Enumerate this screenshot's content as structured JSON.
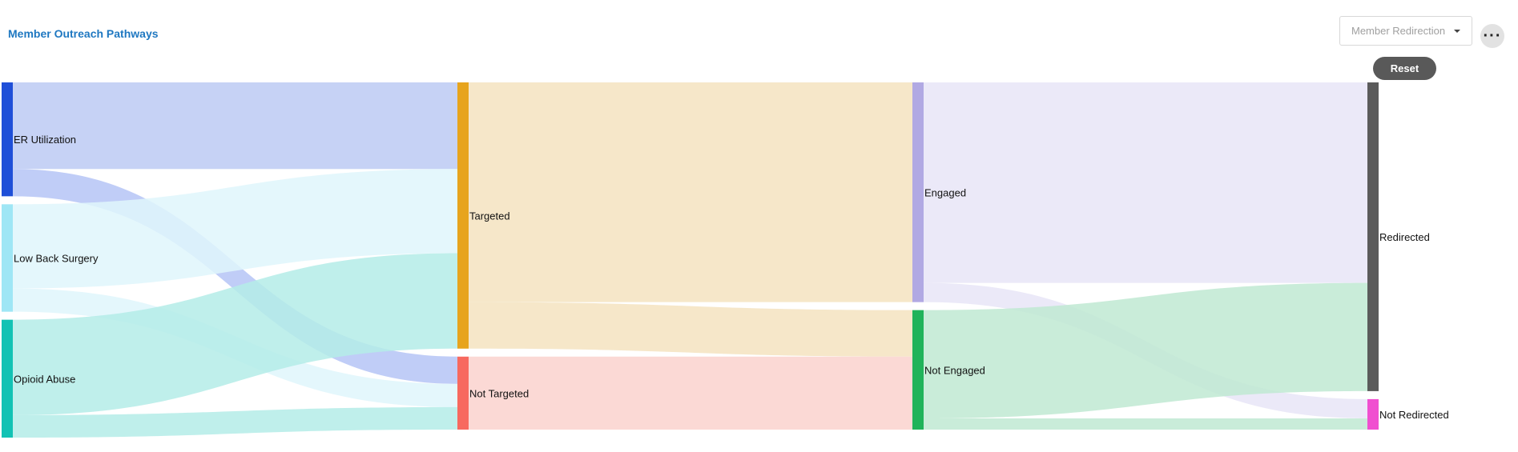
{
  "header": {
    "title": "Member Outreach Pathways",
    "dropdown_value": "Member Redirection",
    "more_icon": "ellipsis-icon",
    "reset_label": "Reset"
  },
  "chart_data": {
    "type": "sankey",
    "title": "Member Outreach Pathways",
    "nodes": [
      {
        "id": "er",
        "label": "ER Utilization",
        "color": "#1f4fd8",
        "column": 0
      },
      {
        "id": "lbs",
        "label": "Low Back Surgery",
        "color": "#9fe6f5",
        "column": 0
      },
      {
        "id": "oa",
        "label": "Opioid Abuse",
        "color": "#12c2b4",
        "column": 0
      },
      {
        "id": "tg",
        "label": "Targeted",
        "color": "#e7a41d",
        "column": 1
      },
      {
        "id": "nt",
        "label": "Not Targeted",
        "color": "#f7695f",
        "column": 1
      },
      {
        "id": "en",
        "label": "Engaged",
        "color": "#b1a9e3",
        "column": 2
      },
      {
        "id": "ne",
        "label": "Not Engaged",
        "color": "#20b35a",
        "column": 2
      },
      {
        "id": "rd",
        "label": "Redirected",
        "color": "#5b5b5b",
        "column": 3
      },
      {
        "id": "nr",
        "label": "Not Redirected",
        "color": "#f04fd0",
        "column": 3
      }
    ],
    "links": [
      {
        "source": "er",
        "target": "tg",
        "value": 108,
        "color": "#bccaf3"
      },
      {
        "source": "er",
        "target": "nt",
        "value": 34,
        "color": "#b5c4f6"
      },
      {
        "source": "lbs",
        "target": "tg",
        "value": 105,
        "color": "#dff6fb"
      },
      {
        "source": "lbs",
        "target": "nt",
        "value": 29,
        "color": "#dff6fb"
      },
      {
        "source": "oa",
        "target": "tg",
        "value": 119,
        "color": "#b4ece8"
      },
      {
        "source": "oa",
        "target": "nt",
        "value": 28,
        "color": "#b4ece8"
      },
      {
        "source": "tg",
        "target": "en",
        "value": 274,
        "color": "#f5e3bf"
      },
      {
        "source": "tg",
        "target": "ne",
        "value": 58,
        "color": "#f5e3bf"
      },
      {
        "source": "nt",
        "target": "ne",
        "value": 91,
        "color": "#fad2ce"
      },
      {
        "source": "en",
        "target": "rd",
        "value": 250,
        "color": "#e8e5f7"
      },
      {
        "source": "en",
        "target": "nr",
        "value": 24,
        "color": "#e8e5f7"
      },
      {
        "source": "ne",
        "target": "rd",
        "value": 135,
        "color": "#c0e9d2"
      },
      {
        "source": "ne",
        "target": "nr",
        "value": 14,
        "color": "#c0e9d2"
      }
    ]
  }
}
